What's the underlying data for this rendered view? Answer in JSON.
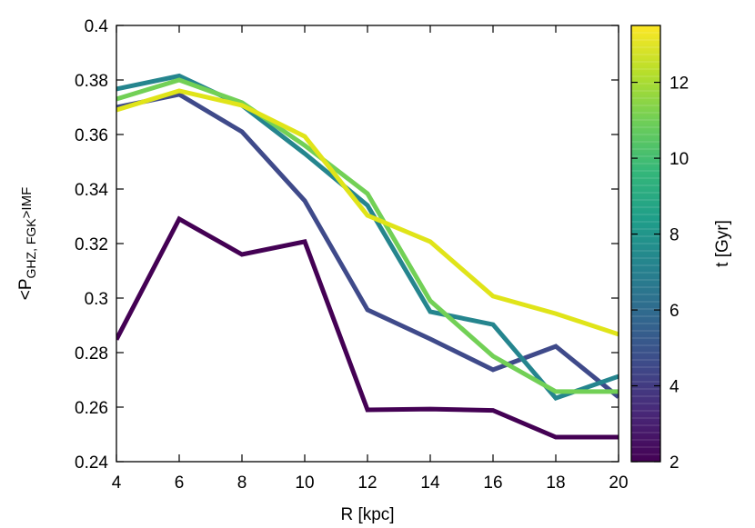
{
  "chart_data": {
    "type": "line",
    "xlabel": "R [kpc]",
    "ylabel": {
      "main": "<P",
      "sub": "GHZ, FGK",
      "suffix": ">IMF"
    },
    "xlim": [
      4,
      20
    ],
    "ylim": [
      0.24,
      0.4
    ],
    "xticks": [
      4,
      6,
      8,
      10,
      12,
      14,
      16,
      18,
      20
    ],
    "yticks": [
      0.24,
      0.26,
      0.28,
      0.3,
      0.32,
      0.34,
      0.36,
      0.38,
      0.4
    ],
    "ytick_labels": [
      "0.24",
      "0.26",
      "0.28",
      "0.3",
      "0.32",
      "0.34",
      "0.36",
      "0.38",
      "0.4"
    ],
    "grid": false,
    "colorbar": {
      "label": "t  [Gyr]",
      "range": [
        2,
        13.5
      ],
      "ticks": [
        2,
        4,
        6,
        8,
        10,
        12
      ],
      "colormap": "viridis",
      "colors": [
        "#440154",
        "#482878",
        "#3e4a89",
        "#31688e",
        "#26828e",
        "#1f9e89",
        "#35b779",
        "#6ece58",
        "#b5de2b",
        "#fde725"
      ]
    },
    "series": [
      {
        "t": 2.0,
        "color": "#440154",
        "x": [
          4,
          6,
          8,
          10,
          12,
          14,
          16,
          18,
          20
        ],
        "y": [
          0.2848,
          0.329,
          0.316,
          0.3207,
          0.259,
          0.2593,
          0.2588,
          0.249,
          0.249
        ]
      },
      {
        "t": 4.2,
        "color": "#3f4a8a",
        "x": [
          4,
          6,
          8,
          10,
          12,
          14,
          16,
          18,
          20
        ],
        "y": [
          0.37,
          0.3747,
          0.361,
          0.3357,
          0.2957,
          0.285,
          0.2737,
          0.2823,
          0.2637
        ]
      },
      {
        "t": 7.2,
        "color": "#25858e",
        "x": [
          4,
          6,
          8,
          10,
          12,
          14,
          16,
          18,
          20
        ],
        "y": [
          0.3767,
          0.3815,
          0.3707,
          0.353,
          0.334,
          0.295,
          0.2903,
          0.2633,
          0.2713
        ]
      },
      {
        "t": 11.2,
        "color": "#72d056",
        "x": [
          4,
          6,
          8,
          10,
          12,
          14,
          16,
          18,
          20
        ],
        "y": [
          0.373,
          0.38,
          0.3717,
          0.356,
          0.3383,
          0.299,
          0.2787,
          0.2657,
          0.2657
        ]
      },
      {
        "t": 13.5,
        "color": "#e0e419",
        "x": [
          4,
          6,
          8,
          10,
          12,
          14,
          16,
          18,
          20
        ],
        "y": [
          0.369,
          0.376,
          0.3707,
          0.3593,
          0.3303,
          0.3207,
          0.3007,
          0.2943,
          0.2867
        ]
      }
    ]
  }
}
